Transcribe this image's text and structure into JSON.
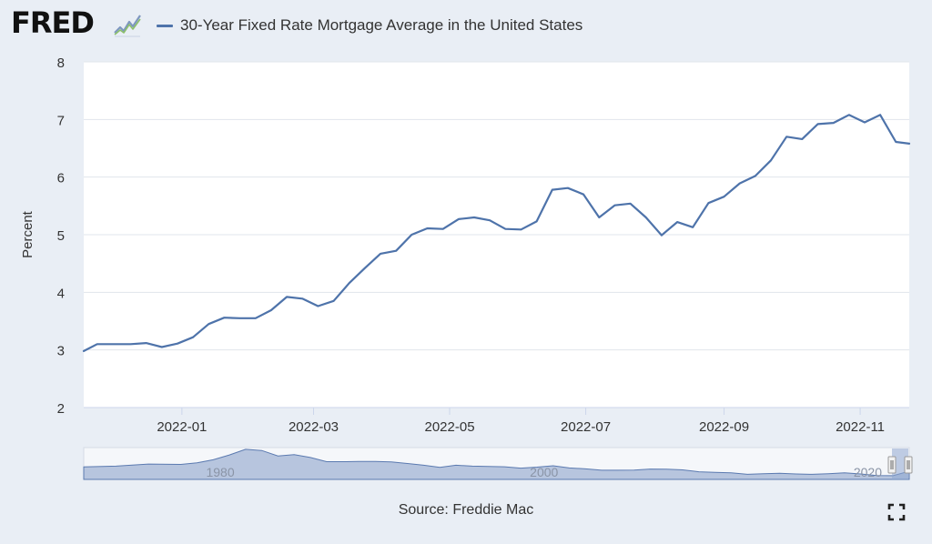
{
  "header": {
    "logo_text": "FRED",
    "logo_mark": "trend-line-icon",
    "legend_label": "30-Year Fixed Rate Mortgage Average in the United States"
  },
  "colors": {
    "series": "#4e73aa",
    "plot_bg": "#ffffff",
    "page_bg": "#e9eef5",
    "grid": "#e1e5ec",
    "navigator_fill": "#b7c5de",
    "navigator_line": "#5b7ab0"
  },
  "footer": {
    "source_label": "Source: Freddie Mac",
    "fullscreen_icon": "fullscreen-icon"
  },
  "navigator": {
    "labels": [
      "1980",
      "2000",
      "2020"
    ]
  },
  "chart_data": {
    "type": "line",
    "title": "30-Year Fixed Rate Mortgage Average in the United States",
    "xlabel": "",
    "ylabel": "Percent",
    "ylim": [
      2,
      8
    ],
    "yticks": [
      2,
      3,
      4,
      5,
      6,
      7,
      8
    ],
    "xlim": [
      "2021-11-18",
      "2022-11-23"
    ],
    "xticks": [
      "2022-01",
      "2022-03",
      "2022-05",
      "2022-07",
      "2022-09",
      "2022-11"
    ],
    "grid": true,
    "legend": "top",
    "series": [
      {
        "name": "30-Year Fixed Rate Mortgage Average in the United States",
        "dates": [
          "2021-11-18",
          "2021-11-24",
          "2021-12-02",
          "2021-12-09",
          "2021-12-16",
          "2021-12-23",
          "2021-12-30",
          "2022-01-06",
          "2022-01-13",
          "2022-01-20",
          "2022-01-27",
          "2022-02-03",
          "2022-02-10",
          "2022-02-17",
          "2022-02-24",
          "2022-03-03",
          "2022-03-10",
          "2022-03-17",
          "2022-03-24",
          "2022-03-31",
          "2022-04-07",
          "2022-04-14",
          "2022-04-21",
          "2022-04-28",
          "2022-05-05",
          "2022-05-12",
          "2022-05-19",
          "2022-05-26",
          "2022-06-02",
          "2022-06-09",
          "2022-06-16",
          "2022-06-23",
          "2022-06-30",
          "2022-07-07",
          "2022-07-14",
          "2022-07-21",
          "2022-07-28",
          "2022-08-04",
          "2022-08-11",
          "2022-08-18",
          "2022-08-25",
          "2022-09-01",
          "2022-09-08",
          "2022-09-15",
          "2022-09-22",
          "2022-09-29",
          "2022-10-06",
          "2022-10-13",
          "2022-10-20",
          "2022-10-27",
          "2022-11-03",
          "2022-11-10",
          "2022-11-17",
          "2022-11-23"
        ],
        "values": [
          2.98,
          3.1,
          3.1,
          3.1,
          3.12,
          3.05,
          3.11,
          3.22,
          3.45,
          3.56,
          3.55,
          3.55,
          3.69,
          3.92,
          3.89,
          3.76,
          3.85,
          4.16,
          4.42,
          4.67,
          4.72,
          5.0,
          5.11,
          5.1,
          5.27,
          5.3,
          5.25,
          5.1,
          5.09,
          5.23,
          5.78,
          5.81,
          5.7,
          5.3,
          5.51,
          5.54,
          5.3,
          4.99,
          5.22,
          5.13,
          5.55,
          5.66,
          5.89,
          6.02,
          6.29,
          6.7,
          6.66,
          6.92,
          6.94,
          7.08,
          6.95,
          7.08,
          6.61,
          6.58
        ]
      }
    ],
    "navigator_series": {
      "name": "30-Year Fixed Rate Mortgage Average in the United States (full history, approx.)",
      "years": [
        1971,
        1973,
        1975,
        1977,
        1978,
        1979,
        1980,
        1981,
        1982,
        1983,
        1984,
        1985,
        1986,
        1987,
        1988,
        1989,
        1990,
        1991,
        1992,
        1993,
        1994,
        1995,
        1996,
        1997,
        1998,
        1999,
        2000,
        2001,
        2002,
        2003,
        2004,
        2005,
        2006,
        2007,
        2008,
        2009,
        2010,
        2011,
        2012,
        2013,
        2014,
        2015,
        2016,
        2017,
        2018,
        2019,
        2020,
        2021,
        2022
      ],
      "values": [
        7.5,
        7.9,
        9.0,
        8.8,
        9.6,
        11.2,
        13.7,
        16.6,
        16.0,
        13.2,
        13.9,
        12.4,
        10.2,
        10.2,
        10.3,
        10.3,
        10.1,
        9.3,
        8.4,
        7.3,
        8.4,
        7.9,
        7.8,
        7.6,
        6.9,
        7.4,
        8.1,
        7.0,
        6.5,
        5.8,
        5.8,
        5.9,
        6.4,
        6.3,
        6.0,
        5.0,
        4.7,
        4.5,
        3.7,
        4.0,
        4.2,
        3.9,
        3.7,
        4.0,
        4.5,
        3.9,
        3.1,
        3.0,
        5.3
      ],
      "label_years": [
        1980,
        2000,
        2020
      ]
    }
  }
}
